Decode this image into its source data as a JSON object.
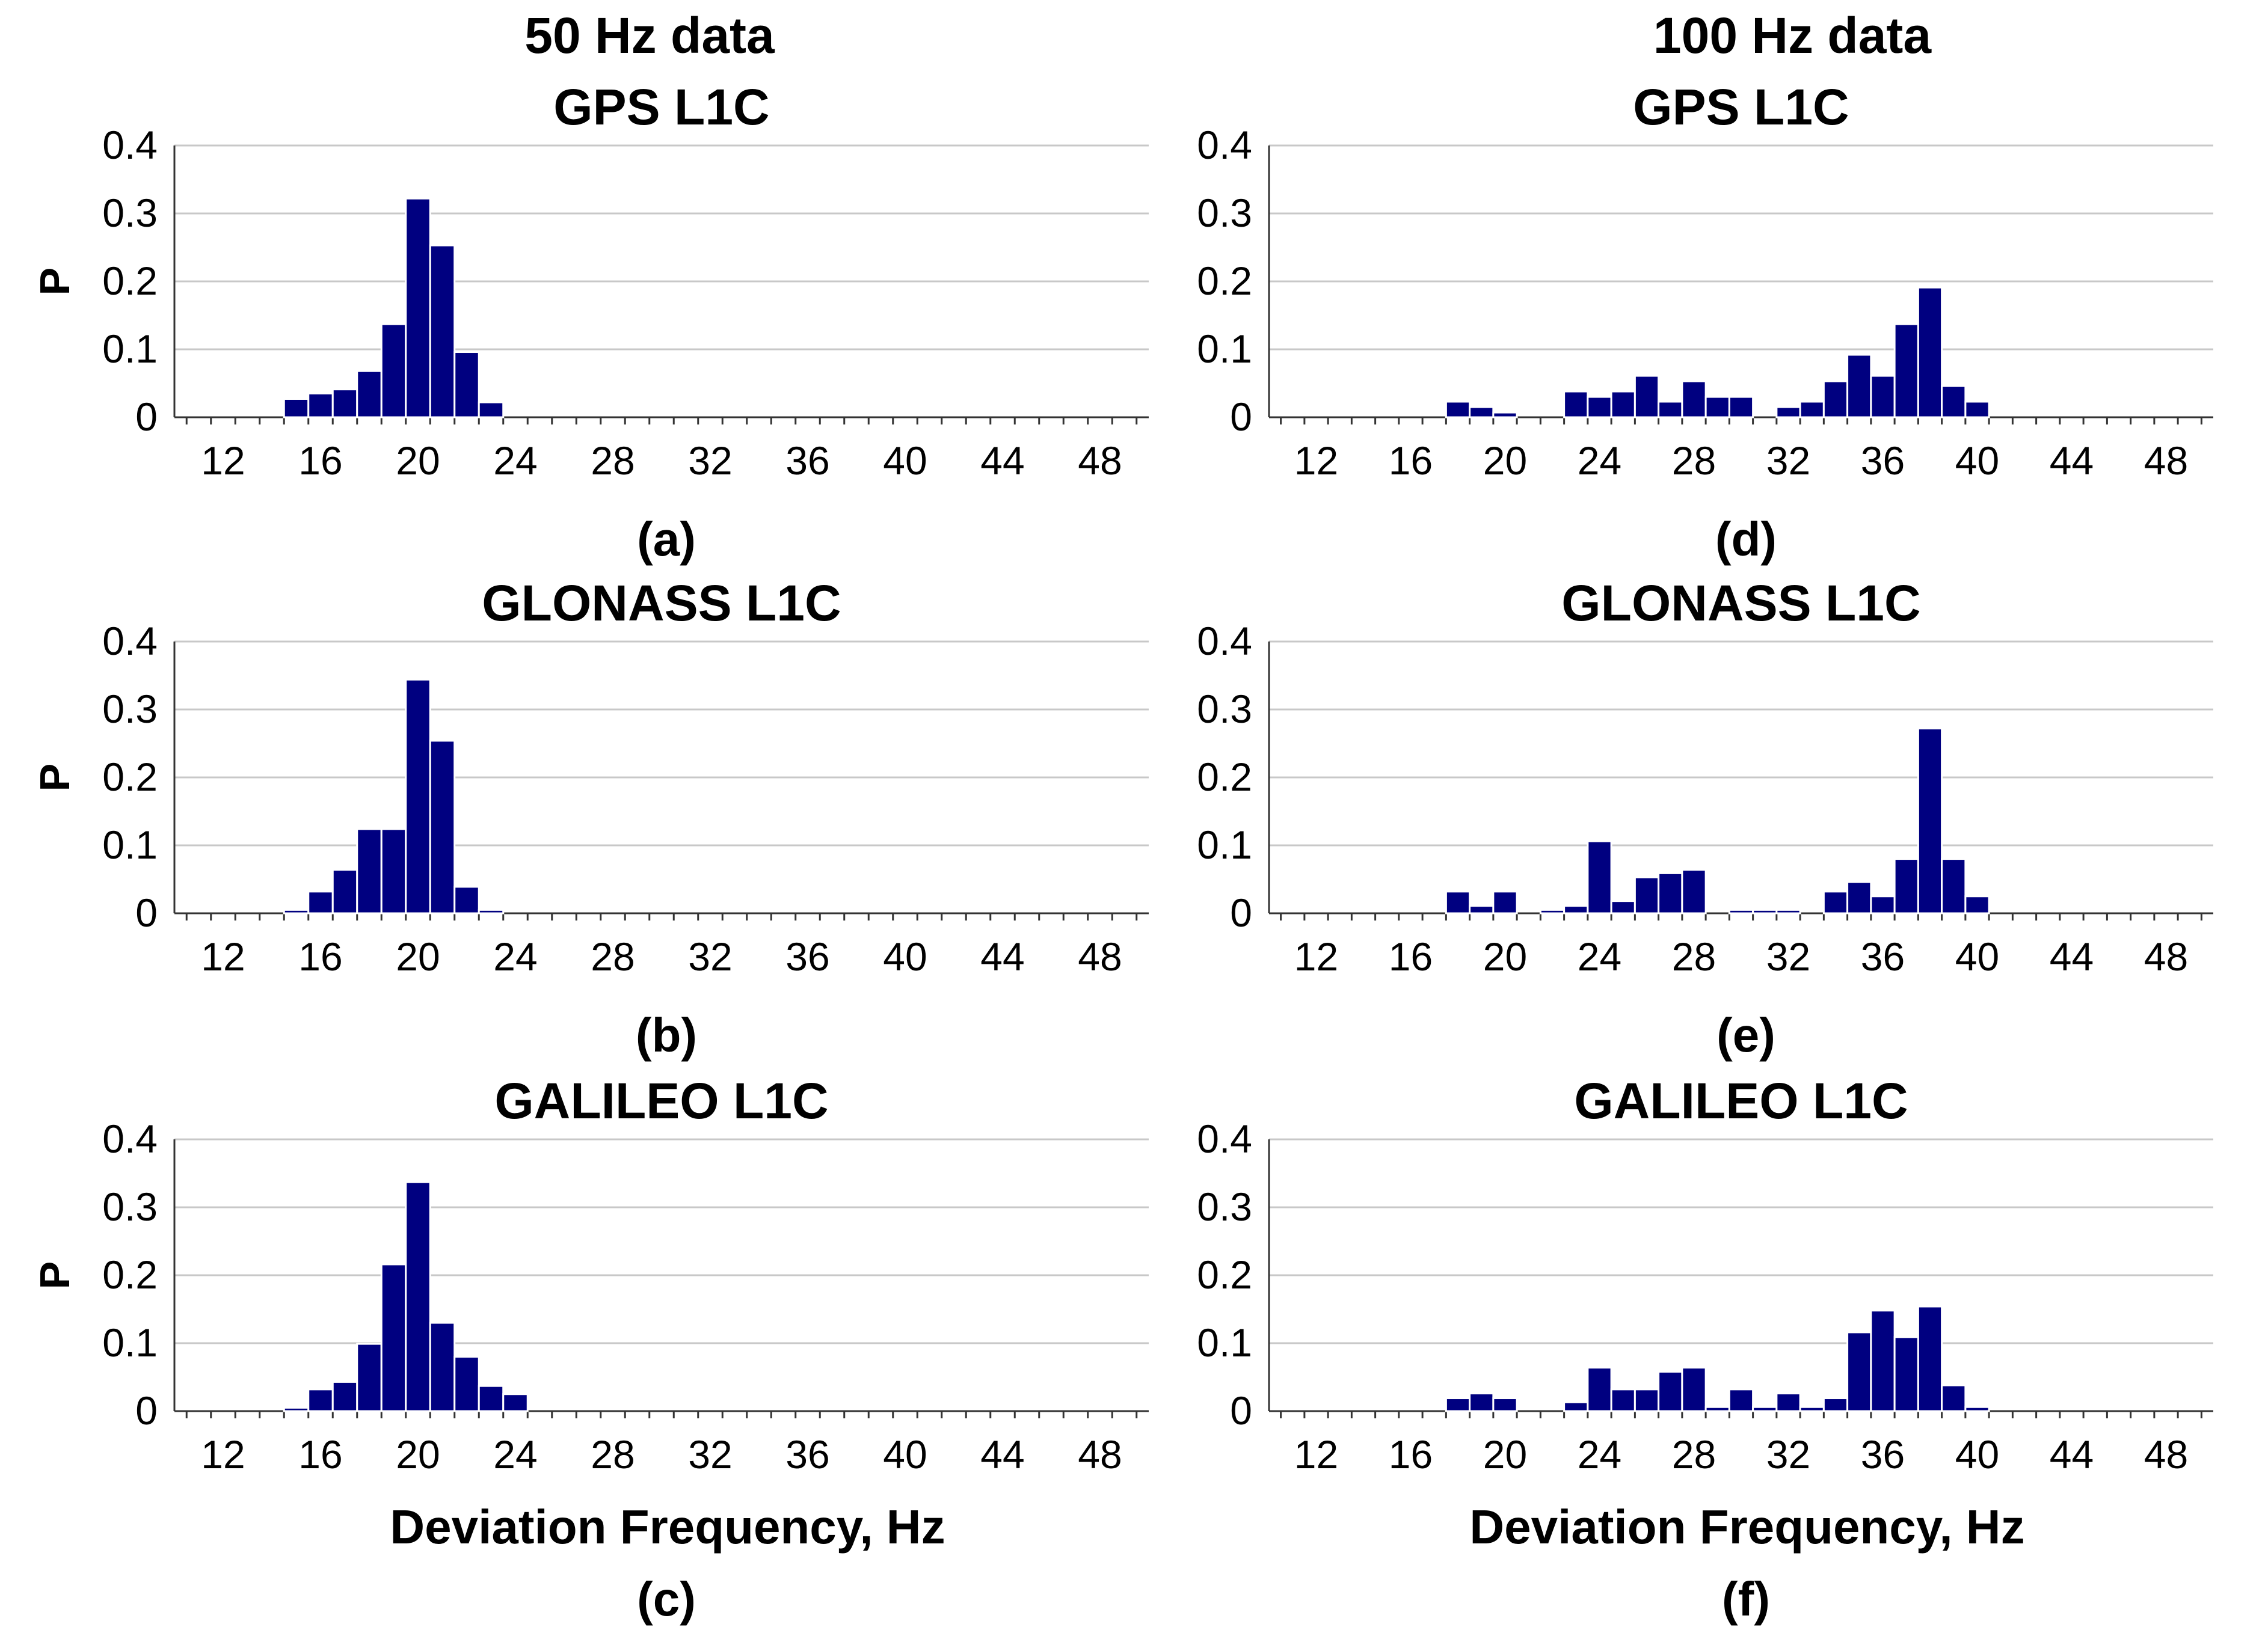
{
  "columns": [
    {
      "title": "50 Hz data"
    },
    {
      "title": "100 Hz data"
    }
  ],
  "chart_data": [
    {
      "type": "bar",
      "panel": "(a)",
      "column": 0,
      "row": 0,
      "title": "GPS L1C",
      "xlabel": "",
      "ylabel": "P",
      "ylim": [
        0,
        0.4
      ],
      "xlim": [
        10,
        50
      ],
      "yticks": [
        "0",
        "0.1",
        "0.2",
        "0.3",
        "0.4"
      ],
      "xticks": [
        "12",
        "16",
        "20",
        "24",
        "28",
        "32",
        "36",
        "40",
        "44",
        "48"
      ],
      "x": [
        15,
        16,
        17,
        18,
        19,
        20,
        21,
        22,
        23
      ],
      "values": [
        0.027,
        0.035,
        0.041,
        0.068,
        0.137,
        0.322,
        0.253,
        0.096,
        0.022
      ]
    },
    {
      "type": "bar",
      "panel": "(b)",
      "column": 0,
      "row": 1,
      "title": "GLONASS L1C",
      "xlabel": "",
      "ylabel": "P",
      "ylim": [
        0,
        0.4
      ],
      "xlim": [
        10,
        50
      ],
      "yticks": [
        "0",
        "0.1",
        "0.2",
        "0.3",
        "0.4"
      ],
      "xticks": [
        "12",
        "16",
        "20",
        "24",
        "28",
        "32",
        "36",
        "40",
        "44",
        "48"
      ],
      "x": [
        15,
        16,
        17,
        18,
        19,
        20,
        21,
        22,
        23
      ],
      "values": [
        0.005,
        0.032,
        0.064,
        0.124,
        0.124,
        0.344,
        0.254,
        0.039,
        0.005
      ]
    },
    {
      "type": "bar",
      "panel": "(c)",
      "column": 0,
      "row": 2,
      "title": "GALILEO L1C",
      "xlabel": "Deviation Frequency, Hz",
      "ylabel": "P",
      "ylim": [
        0,
        0.4
      ],
      "xlim": [
        10,
        50
      ],
      "yticks": [
        "0",
        "0.1",
        "0.2",
        "0.3",
        "0.4"
      ],
      "xticks": [
        "12",
        "16",
        "20",
        "24",
        "28",
        "32",
        "36",
        "40",
        "44",
        "48"
      ],
      "x": [
        15,
        16,
        17,
        18,
        19,
        20,
        21,
        22,
        23,
        24
      ],
      "values": [
        0.005,
        0.032,
        0.043,
        0.099,
        0.216,
        0.337,
        0.13,
        0.08,
        0.037,
        0.025
      ]
    },
    {
      "type": "bar",
      "panel": "(d)",
      "column": 1,
      "row": 0,
      "title": "GPS L1C",
      "xlabel": "",
      "ylabel": "",
      "ylim": [
        0,
        0.4
      ],
      "xlim": [
        10,
        50
      ],
      "yticks": [
        "0",
        "0.1",
        "0.2",
        "0.3",
        "0.4"
      ],
      "xticks": [
        "12",
        "16",
        "20",
        "24",
        "28",
        "32",
        "36",
        "40",
        "44",
        "48"
      ],
      "x": [
        18,
        19,
        20,
        23,
        24,
        25,
        26,
        27,
        28,
        29,
        30,
        32,
        33,
        34,
        35,
        36,
        37,
        38,
        39,
        40
      ],
      "values": [
        0.023,
        0.015,
        0.007,
        0.038,
        0.03,
        0.038,
        0.061,
        0.023,
        0.053,
        0.03,
        0.03,
        0.015,
        0.023,
        0.053,
        0.092,
        0.061,
        0.137,
        0.191,
        0.046,
        0.023
      ]
    },
    {
      "type": "bar",
      "panel": "(e)",
      "column": 1,
      "row": 1,
      "title": "GLONASS L1C",
      "xlabel": "",
      "ylabel": "",
      "ylim": [
        0,
        0.4
      ],
      "xlim": [
        10,
        50
      ],
      "yticks": [
        "0",
        "0.1",
        "0.2",
        "0.3",
        "0.4"
      ],
      "xticks": [
        "12",
        "16",
        "20",
        "24",
        "28",
        "32",
        "36",
        "40",
        "44",
        "48"
      ],
      "x": [
        18,
        19,
        20,
        22,
        23,
        24,
        25,
        26,
        27,
        28,
        30,
        31,
        32,
        34,
        35,
        36,
        37,
        38,
        39,
        40
      ],
      "values": [
        0.032,
        0.011,
        0.032,
        0.005,
        0.011,
        0.106,
        0.018,
        0.053,
        0.059,
        0.064,
        0.005,
        0.005,
        0.005,
        0.032,
        0.046,
        0.025,
        0.08,
        0.272,
        0.08,
        0.025
      ]
    },
    {
      "type": "bar",
      "panel": "(f)",
      "column": 1,
      "row": 2,
      "title": "GALILEO L1C",
      "xlabel": "Deviation Frequency, Hz",
      "ylabel": "",
      "ylim": [
        0,
        0.4
      ],
      "xlim": [
        10,
        50
      ],
      "yticks": [
        "0",
        "0.1",
        "0.2",
        "0.3",
        "0.4"
      ],
      "xticks": [
        "12",
        "16",
        "20",
        "24",
        "28",
        "32",
        "36",
        "40",
        "44",
        "48"
      ],
      "x": [
        18,
        19,
        20,
        23,
        24,
        25,
        26,
        27,
        28,
        29,
        30,
        31,
        32,
        33,
        34,
        35,
        36,
        37,
        38,
        39,
        40
      ],
      "values": [
        0.019,
        0.026,
        0.019,
        0.013,
        0.064,
        0.032,
        0.032,
        0.058,
        0.064,
        0.006,
        0.032,
        0.006,
        0.026,
        0.006,
        0.019,
        0.116,
        0.148,
        0.109,
        0.154,
        0.038,
        0.006
      ]
    }
  ]
}
